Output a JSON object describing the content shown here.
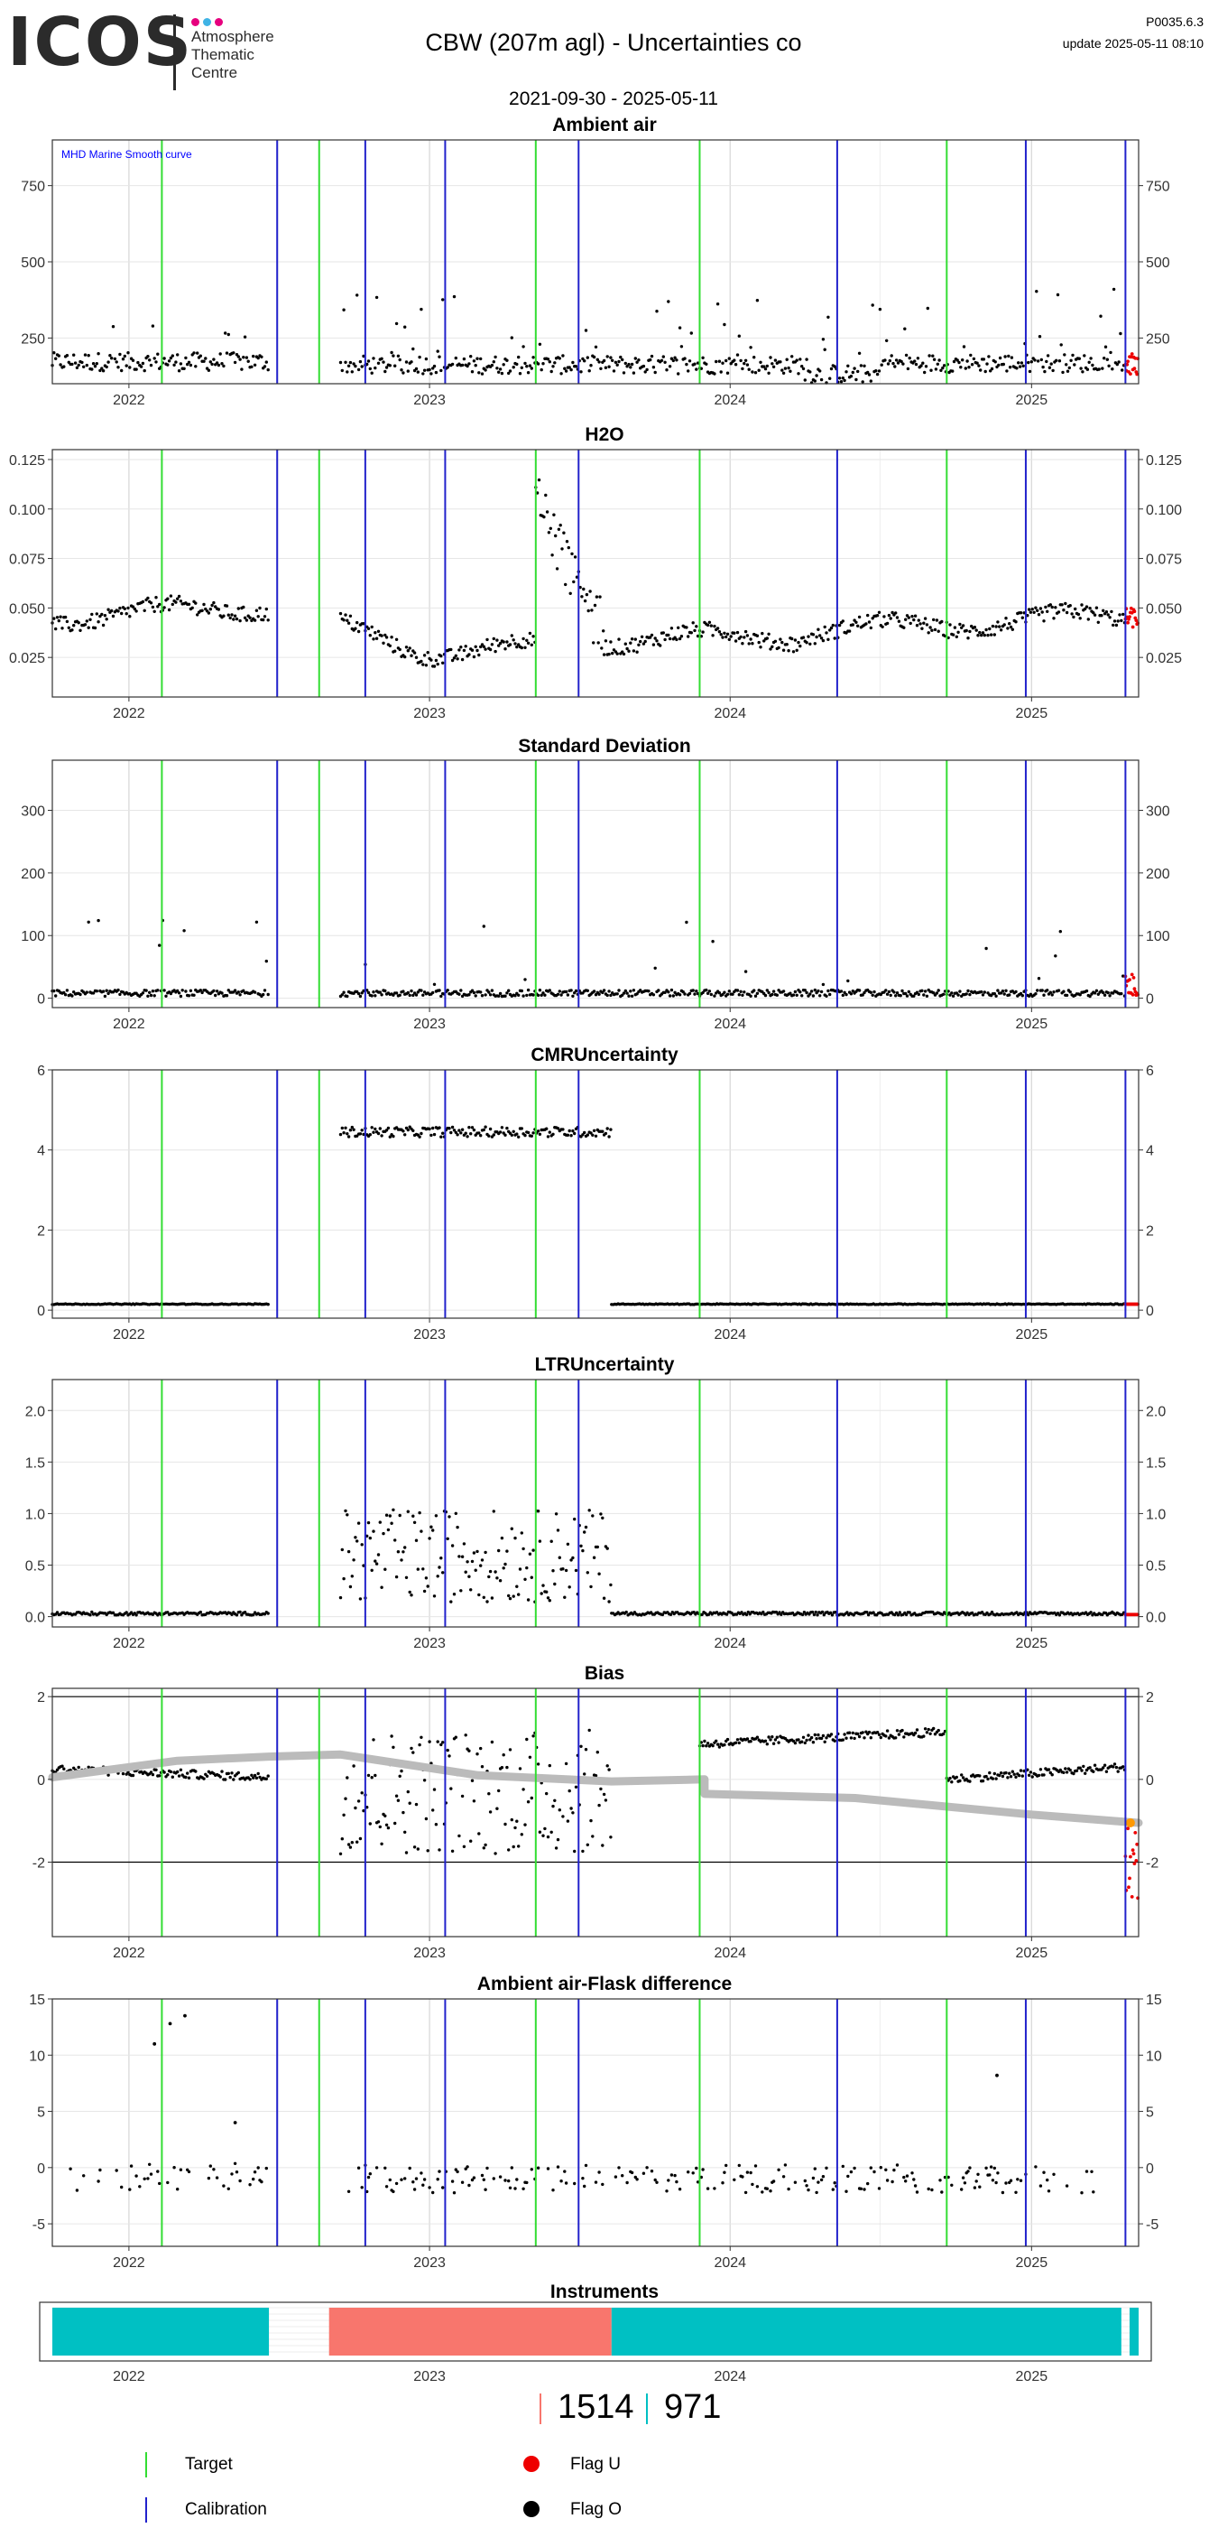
{
  "header": {
    "logo_text": "ICOS",
    "logo_subtitle": [
      "Atmosphere",
      "Thematic",
      "Centre"
    ],
    "logo_dot_colors": [
      "#e6007e",
      "#3fb3e5",
      "#e6007e"
    ],
    "title": "CBW  (207m agl) - Uncertainties co",
    "version": "P0035.6.3",
    "update": "update  2025-05-11 08:10",
    "date_range": "2021-09-30 - 2025-05-11"
  },
  "colors": {
    "target_line": "#33dd33",
    "calibration_line": "#2222cc",
    "flag_u": "#ee0000",
    "flag_o": "#000000",
    "smooth_curve": "#bbbbbb",
    "flag_bias_extra": "#ff9900",
    "instrument_a": "#00c0c3",
    "instrument_b": "#f8766d",
    "annotation_text": "#0000ff"
  },
  "chart_data": {
    "type": "scatter",
    "x_range": [
      "2021-09-30",
      "2025-05-11"
    ],
    "x_ticks": [
      "2022",
      "2023",
      "2024",
      "2025"
    ],
    "target_lines": [
      "2022-02-10",
      "2022-08-20",
      "2023-05-10",
      "2023-11-25",
      "2024-09-20"
    ],
    "calibration_lines": [
      "2022-06-30",
      "2022-10-15",
      "2023-01-20",
      "2023-07-01",
      "2024-05-10",
      "2024-12-25",
      "2025-04-25"
    ],
    "panels": [
      {
        "title": "Ambient air",
        "annotation": "MHD Marine Smooth curve",
        "ylim": [
          100,
          900
        ],
        "yticks": [
          250,
          500,
          750
        ],
        "ytick_labels": [
          "250",
          "500",
          "750"
        ],
        "gaps": [
          [
            "2022-06-20",
            "2022-09-15"
          ]
        ],
        "series": {
          "baseline": 150,
          "spread": 60,
          "spikes": 0.06,
          "spike_max": 700
        },
        "segments": [
          {
            "from": "2021-09-30",
            "to": "2022-06-20",
            "base": 160
          },
          {
            "from": "2022-09-15",
            "to": "2024-04-01",
            "base": 150
          },
          {
            "from": "2024-04-01",
            "to": "2024-07-01",
            "base": 120
          },
          {
            "from": "2024-07-01",
            "to": "2025-04-25",
            "base": 155
          }
        ],
        "flag_u_from": "2025-04-25"
      },
      {
        "title": "H2O",
        "ylim": [
          0.005,
          0.13
        ],
        "yticks": [
          0.025,
          0.05,
          0.075,
          0.1,
          0.125
        ],
        "ytick_labels": [
          "0.025",
          "0.050",
          "0.075",
          "0.100",
          "0.125"
        ],
        "gaps": [
          [
            "2022-06-20",
            "2022-09-15"
          ]
        ],
        "segments": [
          {
            "from": "2021-09-30",
            "to": "2022-06-20",
            "base": 0.045,
            "trend": 0.006
          },
          {
            "from": "2022-09-15",
            "to": "2022-12-20",
            "base": 0.04,
            "trend": -0.012
          },
          {
            "from": "2022-12-20",
            "to": "2023-05-10",
            "base": 0.028,
            "trend": 0.002
          },
          {
            "from": "2023-05-10",
            "to": "2023-08-01",
            "base": 0.1,
            "trend": -0.06
          },
          {
            "from": "2023-08-01",
            "to": "2024-04-01",
            "base": 0.034,
            "trend": 0.002
          },
          {
            "from": "2024-04-01",
            "to": "2025-04-25",
            "base": 0.038,
            "trend": 0.008
          }
        ],
        "flag_u_from": "2025-04-25"
      },
      {
        "title": "Standard Deviation",
        "ylim": [
          -15,
          380
        ],
        "yticks": [
          0,
          100,
          200,
          300
        ],
        "ytick_labels": [
          "0",
          "100",
          "200",
          "300"
        ],
        "gaps": [
          [
            "2022-06-20",
            "2022-09-15"
          ]
        ],
        "segments": [
          {
            "from": "2021-09-30",
            "to": "2022-06-20",
            "base": 8
          },
          {
            "from": "2022-09-15",
            "to": "2025-04-25",
            "base": 8
          }
        ],
        "flag_u_from": "2025-04-25"
      },
      {
        "title": "CMRUncertainty",
        "ylim": [
          -0.2,
          6
        ],
        "yticks": [
          0,
          2,
          4,
          6
        ],
        "ytick_labels": [
          "0",
          "2",
          "4",
          "6"
        ],
        "gaps": [
          [
            "2022-06-20",
            "2022-09-15"
          ]
        ],
        "segments": [
          {
            "from": "2021-09-30",
            "to": "2022-06-20",
            "base": 0.15
          },
          {
            "from": "2022-09-15",
            "to": "2023-08-10",
            "base": 4.45
          },
          {
            "from": "2023-08-10",
            "to": "2025-04-25",
            "base": 0.15
          }
        ],
        "flag_u_from": "2025-04-25"
      },
      {
        "title": "LTRUncertainty",
        "ylim": [
          -0.1,
          2.3
        ],
        "yticks": [
          0,
          0.5,
          1,
          1.5,
          2
        ],
        "ytick_labels": [
          "0.0",
          "0.5",
          "1.0",
          "1.5",
          "2.0"
        ],
        "gaps": [
          [
            "2022-06-20",
            "2022-09-15"
          ]
        ],
        "segments": [
          {
            "from": "2021-09-30",
            "to": "2022-06-20",
            "base": 0.03
          },
          {
            "from": "2022-09-15",
            "to": "2023-08-10",
            "base": 0.5
          },
          {
            "from": "2023-08-10",
            "to": "2025-04-25",
            "base": 0.03
          }
        ],
        "flag_u_from": "2025-04-25"
      },
      {
        "title": "Bias",
        "ylim": [
          -3.8,
          2.2
        ],
        "yticks": [
          -2,
          0,
          2
        ],
        "ytick_labels": [
          "-2",
          "0",
          "2"
        ],
        "hlines": [
          -2,
          2
        ],
        "gaps": [
          [
            "2022-06-20",
            "2022-09-15"
          ]
        ],
        "segments": [
          {
            "from": "2021-09-30",
            "to": "2022-06-20",
            "base": 0.25
          },
          {
            "from": "2022-09-15",
            "to": "2023-08-10",
            "base": -0.3
          },
          {
            "from": "2023-11-25",
            "to": "2024-09-20",
            "base": 0.85
          },
          {
            "from": "2024-09-20",
            "to": "2025-04-25",
            "base": 0.0
          }
        ],
        "smooth_curve": [
          {
            "x": "2021-09-30",
            "y": 0.05
          },
          {
            "x": "2022-03-01",
            "y": 0.45
          },
          {
            "x": "2022-06-20",
            "y": 0.55
          },
          {
            "x": "2022-09-15",
            "y": 0.6
          },
          {
            "x": "2023-03-01",
            "y": 0.1
          },
          {
            "x": "2023-08-10",
            "y": -0.05
          },
          {
            "x": "2023-12-01",
            "y": 0.0
          },
          {
            "x": "2023-12-01",
            "y": -0.35
          },
          {
            "x": "2024-06-01",
            "y": -0.45
          },
          {
            "x": "2025-01-01",
            "y": -0.85
          },
          {
            "x": "2025-05-11",
            "y": -1.05
          }
        ],
        "flag_u_from": "2025-04-25"
      },
      {
        "title": "Ambient air-Flask difference",
        "ylim": [
          -7,
          15
        ],
        "yticks": [
          -5,
          0,
          5,
          10,
          15
        ],
        "ytick_labels": [
          "-5",
          "0",
          "5",
          "10",
          "15"
        ],
        "gaps": [
          [
            "2022-06-20",
            "2022-09-15"
          ],
          [
            "2023-08-10",
            "2023-09-25"
          ]
        ],
        "segments": [
          {
            "from": "2021-10-20",
            "to": "2022-06-20",
            "base": -0.8
          },
          {
            "from": "2022-09-15",
            "to": "2025-03-20",
            "base": -1.0
          }
        ],
        "outliers": [
          {
            "x": "2022-02-01",
            "y": 11
          },
          {
            "x": "2022-02-20",
            "y": 12.8
          },
          {
            "x": "2022-03-10",
            "y": 13.5
          },
          {
            "x": "2022-05-10",
            "y": 4
          },
          {
            "x": "2024-11-20",
            "y": 8.2
          }
        ]
      }
    ],
    "instruments": {
      "title": "Instruments",
      "bars": [
        {
          "from": "2021-09-30",
          "to": "2022-06-20",
          "instrument": "971"
        },
        {
          "from": "2022-09-01",
          "to": "2023-08-10",
          "instrument": "1514"
        },
        {
          "from": "2023-08-10",
          "to": "2025-04-20",
          "instrument": "971"
        },
        {
          "from": "2025-04-30",
          "to": "2025-05-11",
          "instrument": "971"
        }
      ]
    }
  },
  "counts": {
    "instrument_1514": "1514",
    "instrument_971": "971"
  },
  "legend": {
    "target": "Target",
    "calibration": "Calibration",
    "flag_u": "Flag U",
    "flag_o": "Flag O"
  }
}
